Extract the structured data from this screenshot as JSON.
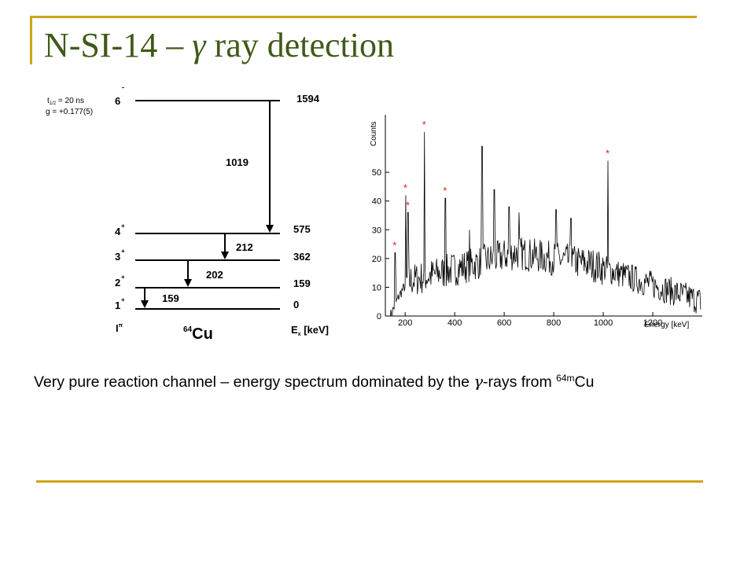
{
  "slide": {
    "title_prefix": "N-SI-14 – ",
    "title_gamma": "γ",
    "title_suffix": " ray detection",
    "caption_prefix": "Very pure reaction channel – energy spectrum dominated by the ",
    "caption_gamma": "γ",
    "caption_mid": "-rays from ",
    "caption_sup": "64m",
    "caption_end": "Cu",
    "accent_color": "#d1a318",
    "title_color": "#3f5a17"
  },
  "level_scheme": {
    "halflife": "t",
    "halflife_sub": "1/2",
    "halflife_value": " = 20 ns",
    "g_factor": "g = +0.177(5)",
    "levels": [
      {
        "spin": "6",
        "parity": "-",
        "energy": "1594"
      },
      {
        "spin": "4",
        "parity": "+",
        "energy": "575"
      },
      {
        "spin": "3",
        "parity": "+",
        "energy": "362"
      },
      {
        "spin": "2",
        "parity": "+",
        "energy": "159"
      },
      {
        "spin": "1",
        "parity": "+",
        "energy": "0"
      }
    ],
    "transitions": [
      "1019",
      "212",
      "202",
      "159"
    ],
    "spin_header": "I",
    "spin_header_sup": "π",
    "nucleus_mass": "64",
    "nucleus": "Cu",
    "energy_header": "E",
    "energy_header_sub": "x",
    "energy_header_unit": " [keV]"
  },
  "chart_data": {
    "type": "line",
    "title": "",
    "xlabel": "Energy [keV]",
    "ylabel": "Counts",
    "xlim": [
      120,
      1400
    ],
    "ylim": [
      0,
      70
    ],
    "xticks": [
      "200",
      "400",
      "600",
      "800",
      "1000",
      "1200"
    ],
    "yticks": [
      "0",
      "10",
      "20",
      "30",
      "40",
      "50"
    ],
    "grid": false,
    "marker": "*",
    "marker_color": "#e02020",
    "marked_peaks": [
      {
        "x": 159,
        "y": 22
      },
      {
        "x": 202,
        "y": 42
      },
      {
        "x": 212,
        "y": 36
      },
      {
        "x": 278,
        "y": 64
      },
      {
        "x": 362,
        "y": 41
      },
      {
        "x": 1019,
        "y": 54
      }
    ],
    "other_peaks": [
      {
        "x": 460,
        "y": 30
      },
      {
        "x": 511,
        "y": 59
      },
      {
        "x": 560,
        "y": 44
      },
      {
        "x": 620,
        "y": 38
      },
      {
        "x": 660,
        "y": 36
      },
      {
        "x": 810,
        "y": 37
      },
      {
        "x": 870,
        "y": 34
      }
    ]
  }
}
